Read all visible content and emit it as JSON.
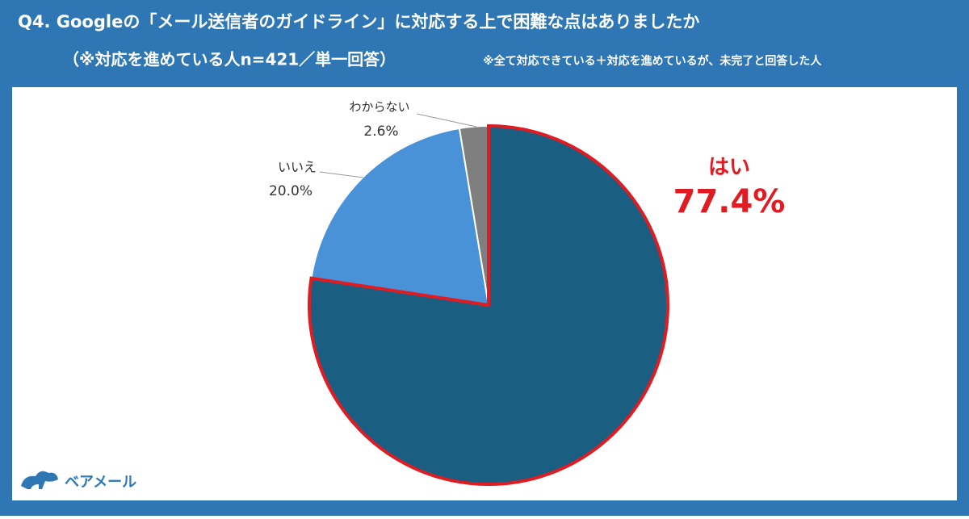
{
  "chart_data": {
    "type": "pie",
    "title": "Q4. Googleの「メール送信者のガイドライン」に対応する上で困難な点はありましたか",
    "subtitle": "（※対応を進めている人n=421／単一回答）",
    "note": "※全て対応できている＋対応を進めているが、未完了と回答した人",
    "categories": [
      "はい",
      "いいえ",
      "わからない"
    ],
    "values": [
      77.4,
      20.0,
      2.6
    ],
    "value_labels": [
      "77.4%",
      "20.0%",
      "2.6%"
    ],
    "colors": [
      "#1a5e82",
      "#4a92d8",
      "#7f7f7f"
    ],
    "highlight_color": "#e01b22"
  },
  "logo": "ベアメール"
}
